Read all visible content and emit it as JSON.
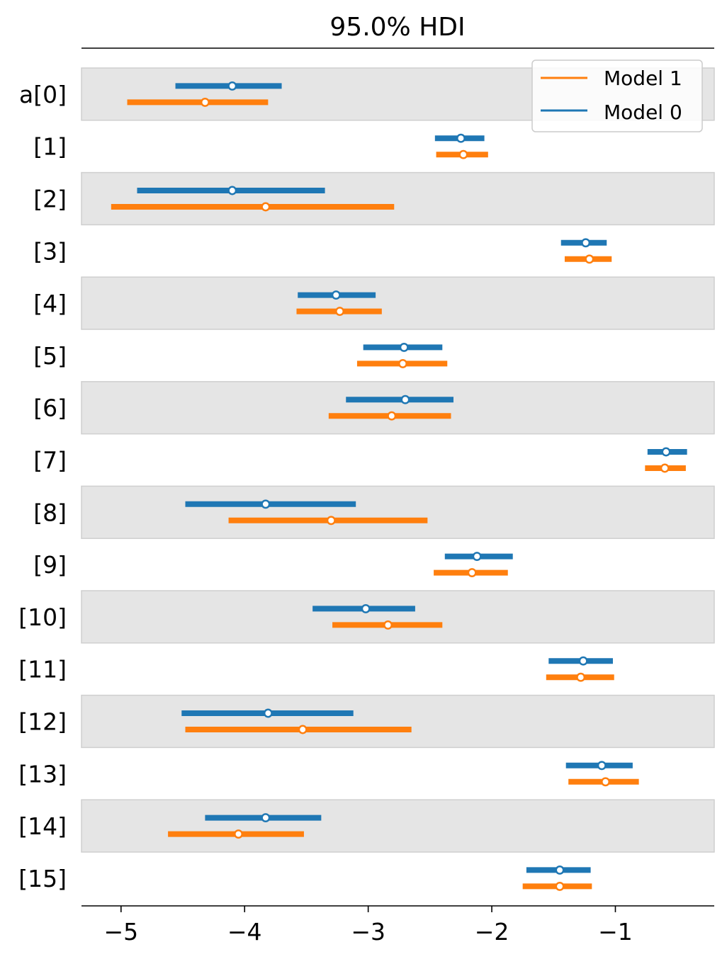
{
  "chart_data": {
    "type": "forest",
    "title": "95.0% HDI",
    "xlim": [
      -5.32,
      -0.2
    ],
    "xticks": [
      -5,
      -4,
      -3,
      -2,
      -1
    ],
    "xtick_labels": [
      "−5",
      "−4",
      "−3",
      "−2",
      "−1"
    ],
    "categories": [
      "a[0]",
      "[1]",
      "[2]",
      "[3]",
      "[4]",
      "[5]",
      "[6]",
      "[7]",
      "[8]",
      "[9]",
      "[10]",
      "[11]",
      "[12]",
      "[13]",
      "[14]",
      "[15]"
    ],
    "shaded_rows": [
      0,
      2,
      4,
      6,
      8,
      10,
      12,
      14
    ],
    "legend": {
      "position": "top-right"
    },
    "series": [
      {
        "name": "Model 1",
        "color": "#ff7f0e",
        "point": [
          -4.32,
          -2.23,
          -3.83,
          -1.21,
          -3.23,
          -2.72,
          -2.81,
          -0.6,
          -3.3,
          -2.16,
          -2.84,
          -1.28,
          -3.53,
          -1.08,
          -4.05,
          -1.45
        ],
        "low": [
          -4.95,
          -2.45,
          -5.08,
          -1.41,
          -3.58,
          -3.09,
          -3.32,
          -0.76,
          -4.13,
          -2.47,
          -3.29,
          -1.56,
          -4.48,
          -1.38,
          -4.62,
          -1.75
        ],
        "high": [
          -3.81,
          -2.03,
          -2.79,
          -1.03,
          -2.89,
          -2.36,
          -2.33,
          -0.43,
          -2.52,
          -1.87,
          -2.4,
          -1.01,
          -2.65,
          -0.81,
          -3.52,
          -1.19
        ]
      },
      {
        "name": "Model 0",
        "color": "#1f77b4",
        "point": [
          -4.1,
          -2.25,
          -4.1,
          -1.24,
          -3.26,
          -2.71,
          -2.7,
          -0.59,
          -3.83,
          -2.12,
          -3.02,
          -1.26,
          -3.81,
          -1.11,
          -3.83,
          -1.45
        ],
        "low": [
          -4.56,
          -2.46,
          -4.87,
          -1.44,
          -3.57,
          -3.04,
          -3.18,
          -0.74,
          -4.48,
          -2.38,
          -3.45,
          -1.54,
          -4.51,
          -1.4,
          -4.32,
          -1.72
        ],
        "high": [
          -3.7,
          -2.06,
          -3.35,
          -1.07,
          -2.94,
          -2.4,
          -2.31,
          -0.42,
          -3.1,
          -1.83,
          -2.62,
          -1.02,
          -3.12,
          -0.86,
          -3.38,
          -1.2
        ]
      }
    ]
  }
}
